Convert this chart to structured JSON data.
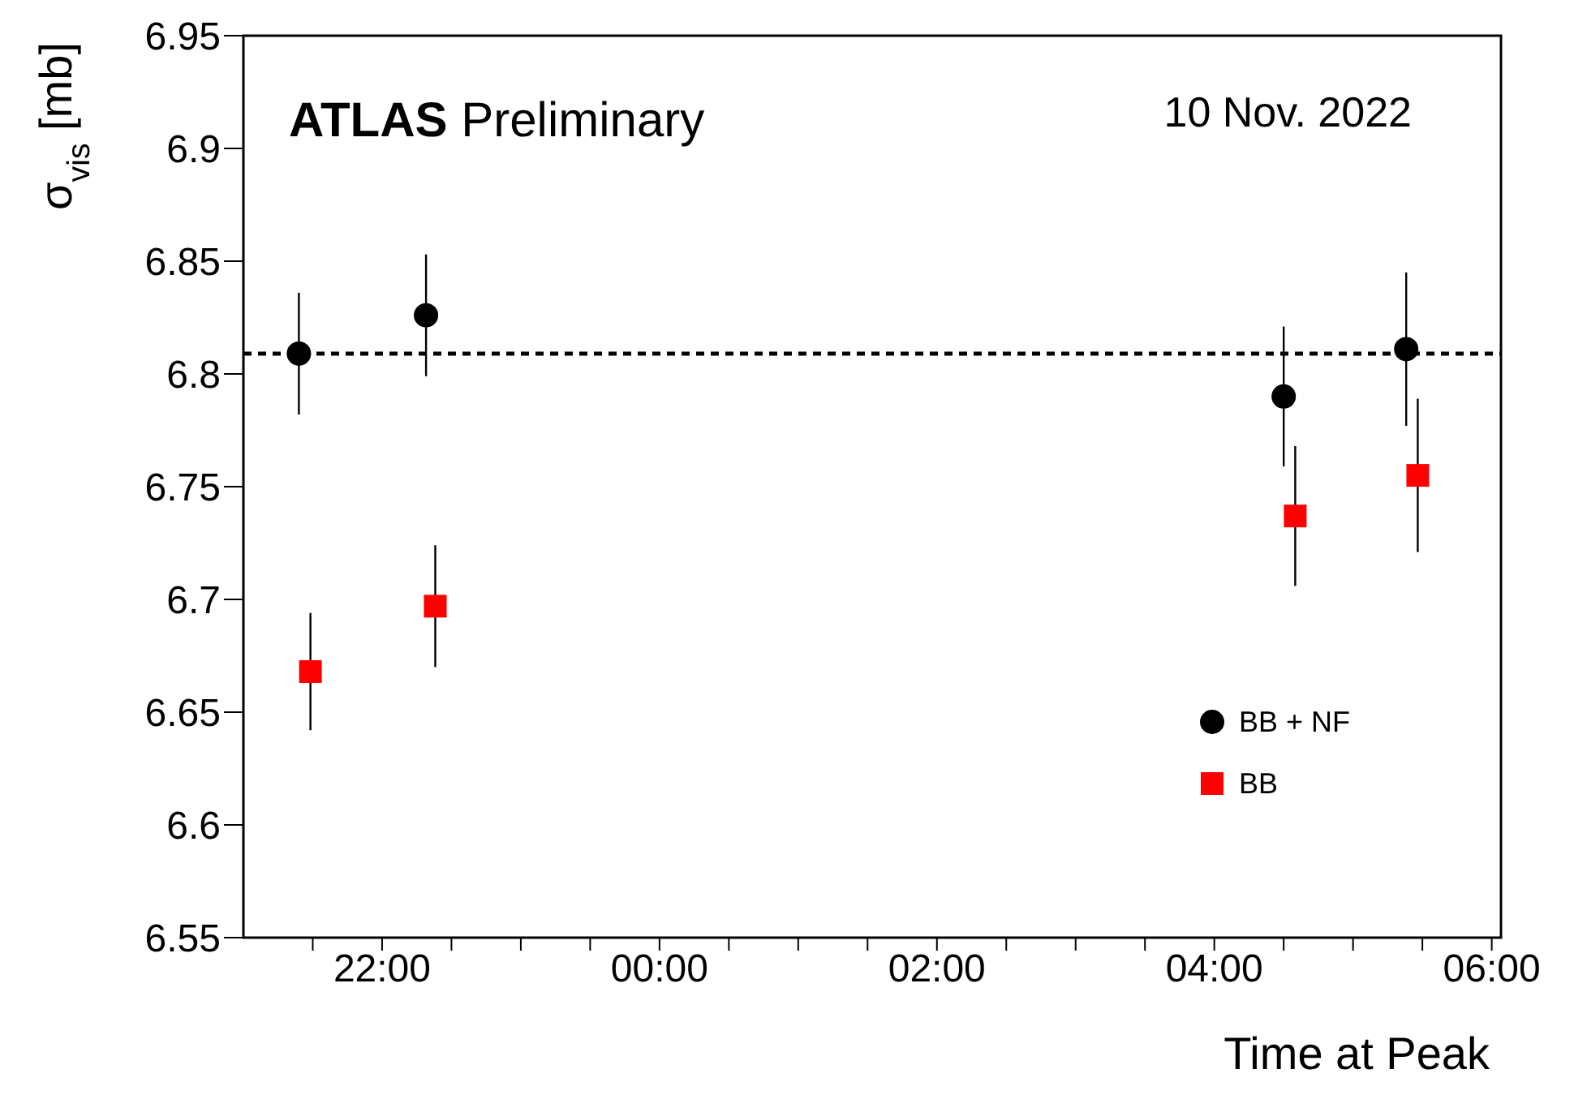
{
  "chart_data": {
    "type": "scatter",
    "xlabel": "Time at Peak",
    "ylabel": "σ$_{vis}$ [mb]",
    "annotations": [
      "ATLAS Preliminary",
      "10 Nov. 2022"
    ],
    "xlim": [
      "2022-11-10T21:00",
      "2022-11-11T06:04"
    ],
    "xticks": [
      {
        "value": "2022-11-10T21:30",
        "label": null
      },
      {
        "value": "2022-11-10T22:00",
        "label": "22:00"
      },
      {
        "value": "2022-11-10T22:30",
        "label": null
      },
      {
        "value": "2022-11-10T23:00",
        "label": null
      },
      {
        "value": "2022-11-10T23:30",
        "label": null
      },
      {
        "value": "2022-11-11T00:00",
        "label": "00:00"
      },
      {
        "value": "2022-11-11T00:30",
        "label": null
      },
      {
        "value": "2022-11-11T01:00",
        "label": null
      },
      {
        "value": "2022-11-11T01:30",
        "label": null
      },
      {
        "value": "2022-11-11T02:00",
        "label": "02:00"
      },
      {
        "value": "2022-11-11T02:30",
        "label": null
      },
      {
        "value": "2022-11-11T03:00",
        "label": null
      },
      {
        "value": "2022-11-11T03:30",
        "label": null
      },
      {
        "value": "2022-11-11T04:00",
        "label": "04:00"
      },
      {
        "value": "2022-11-11T04:30",
        "label": null
      },
      {
        "value": "2022-11-11T05:00",
        "label": null
      },
      {
        "value": "2022-11-11T05:30",
        "label": null
      },
      {
        "value": "2022-11-11T06:00",
        "label": "06:00"
      }
    ],
    "ylim": [
      6.55,
      6.95
    ],
    "yticks": [
      6.55,
      6.6,
      6.65,
      6.7,
      6.75,
      6.8,
      6.85,
      6.9,
      6.95
    ],
    "grid": false,
    "legend": "bottom right",
    "ref_lines": [
      {
        "axis": "y",
        "value": 6.809,
        "label": null,
        "color": "#000000",
        "line_style": "dashed"
      }
    ],
    "series": [
      {
        "name": "BB + NF",
        "color": "#000000",
        "marker": "circle",
        "x": [
          "2022-11-10T21:24",
          "2022-11-10T22:19",
          "2022-11-11T04:30",
          "2022-11-11T05:23"
        ],
        "values": [
          6.809,
          6.826,
          6.79,
          6.811
        ],
        "errors": [
          0.027,
          0.027,
          0.031,
          0.034
        ]
      },
      {
        "name": "BB",
        "color": "#ff0000",
        "marker": "square",
        "x": [
          "2022-11-10T21:29",
          "2022-11-10T22:23",
          "2022-11-11T04:35",
          "2022-11-11T05:28"
        ],
        "values": [
          6.668,
          6.697,
          6.737,
          6.755
        ],
        "errors": [
          0.026,
          0.027,
          0.031,
          0.034
        ]
      }
    ]
  }
}
